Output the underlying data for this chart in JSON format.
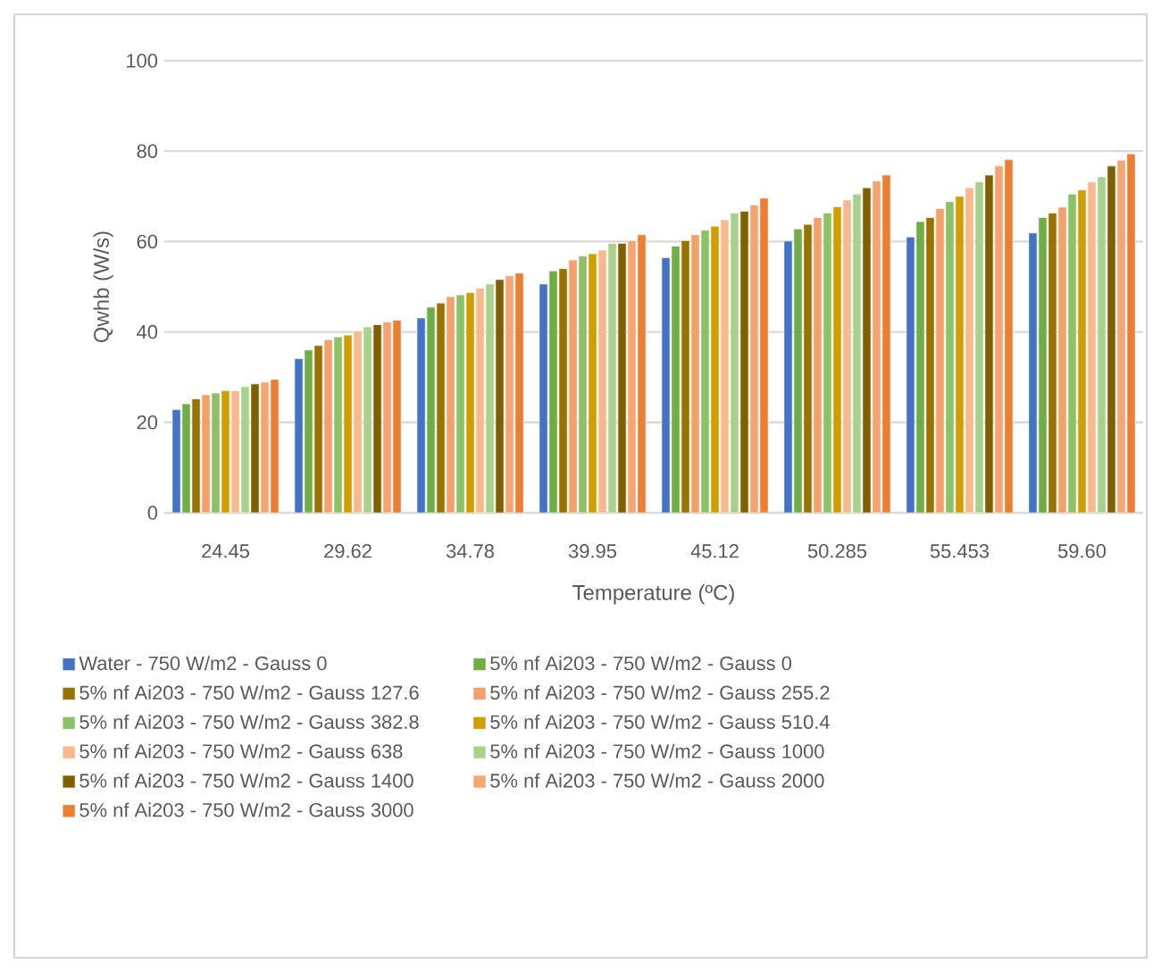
{
  "chart_data": {
    "type": "bar",
    "xlabel": "Temperature (ºC)",
    "ylabel": "Qwhb (W/s)",
    "categories": [
      "24.45",
      "29.62",
      "34.78",
      "39.95",
      "45.12",
      "50.285",
      "55.453",
      "59.60"
    ],
    "ylim": [
      0,
      100
    ],
    "yticks": [
      0,
      20,
      40,
      60,
      80,
      100
    ],
    "grid": "y",
    "legend": "bottom",
    "series": [
      {
        "name": "Water - 750 W/m2 - Gauss 0",
        "color": "#4472c4",
        "values": [
          22.8,
          34.1,
          43.1,
          50.6,
          56.4,
          60.1,
          61.0,
          61.9
        ]
      },
      {
        "name": "5% nf Ai203 - 750 W/m2 - Gauss 0",
        "color": "#70ad47",
        "values": [
          24.1,
          36.0,
          45.5,
          53.5,
          59.0,
          62.8,
          64.4,
          65.3
        ]
      },
      {
        "name": "5% nf Ai203 - 750 W/m2 - Gauss 127.6",
        "color": "#997300",
        "values": [
          25.2,
          37.0,
          46.4,
          54.0,
          60.2,
          63.8,
          65.3,
          66.3
        ]
      },
      {
        "name": "5% nf Ai203 - 750 W/m2 - Gauss 255.2",
        "color": "#f4a06a",
        "values": [
          26.1,
          38.3,
          47.8,
          55.9,
          61.5,
          65.3,
          67.3,
          67.6
        ]
      },
      {
        "name": "5% nf Ai203 - 750 W/m2 - Gauss 382.8",
        "color": "#8cc168",
        "values": [
          26.5,
          38.9,
          48.2,
          56.8,
          62.5,
          66.3,
          68.8,
          70.5
        ]
      },
      {
        "name": "5% nf Ai203 - 750 W/m2 - Gauss 510.4",
        "color": "#d09e00",
        "values": [
          27.0,
          39.3,
          48.7,
          57.3,
          63.4,
          67.7,
          70.0,
          71.4
        ]
      },
      {
        "name": "5% nf Ai203 - 750 W/m2 - Gauss 638",
        "color": "#f8b98c",
        "values": [
          27.0,
          40.2,
          49.7,
          58.1,
          64.8,
          69.2,
          71.9,
          73.2
        ]
      },
      {
        "name": "5% nf Ai203 - 750 W/m2 - Gauss 1000",
        "color": "#a9d18e",
        "values": [
          27.9,
          41.1,
          50.6,
          59.6,
          66.3,
          70.5,
          73.2,
          74.3
        ]
      },
      {
        "name": "5% nf Ai203 - 750 W/m2 - Gauss 1400",
        "color": "#7f6000",
        "values": [
          28.5,
          41.6,
          51.6,
          59.6,
          66.7,
          71.9,
          74.7,
          76.7
        ]
      },
      {
        "name": "5% nf Ai203 - 750 W/m2 - Gauss 2000",
        "color": "#f4a572",
        "values": [
          28.9,
          42.2,
          52.4,
          60.2,
          68.1,
          73.4,
          76.7,
          78.0
        ]
      },
      {
        "name": "5% nf Ai203 - 750 W/m2 - Gauss 3000",
        "color": "#ed7d31",
        "values": [
          29.5,
          42.6,
          53.0,
          61.5,
          69.6,
          74.7,
          78.1,
          79.4
        ]
      }
    ]
  }
}
